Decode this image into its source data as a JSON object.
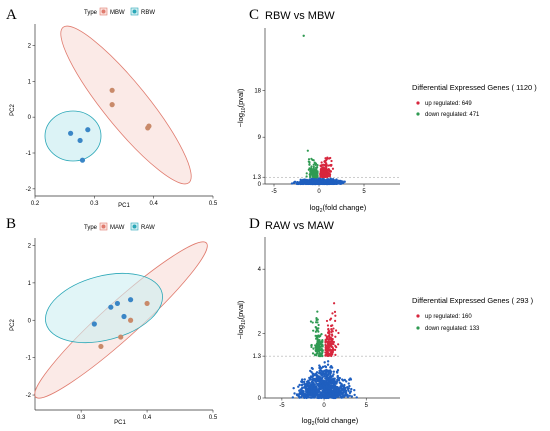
{
  "panels": {
    "A": "A",
    "B": "B",
    "C": "C",
    "D": "D"
  },
  "colors": {
    "mbw": "#e07b6e",
    "rbw": "#2aa7b7",
    "up": "#d7263d",
    "down": "#2f9a52",
    "neutral": "#1f5fbf"
  },
  "chart_data": [
    {
      "type": "scatter",
      "panel": "A",
      "legend_title": "Type",
      "legend_entries": [
        "MBW",
        "RBW"
      ],
      "xlabel": "PC1",
      "ylabel": "PC2",
      "xlim": [
        0.2,
        0.5
      ],
      "ylim": [
        -2.2,
        2.6
      ],
      "xticks": [
        0.2,
        0.3,
        0.4,
        0.5
      ],
      "xticklabels": [
        "0.2",
        "0.3",
        "0.4",
        "0.5"
      ],
      "yticks": [
        -2,
        -1,
        0,
        1,
        2
      ],
      "yticklabels": [
        "-2",
        "-1",
        "0",
        "1",
        "2"
      ],
      "series": [
        {
          "name": "MBW",
          "x": [
            0.33,
            0.33,
            0.39,
            0.392
          ],
          "y": [
            0.75,
            0.35,
            -0.3,
            -0.25
          ]
        },
        {
          "name": "RBW",
          "x": [
            0.26,
            0.276,
            0.289,
            0.28
          ],
          "y": [
            -0.45,
            -0.65,
            -0.35,
            -1.2
          ]
        }
      ]
    },
    {
      "type": "scatter",
      "panel": "B",
      "legend_title": "Type",
      "legend_entries": [
        "MAW",
        "RAW"
      ],
      "xlabel": "PC1",
      "ylabel": "PC2",
      "xlim": [
        0.23,
        0.5
      ],
      "ylim": [
        -2.4,
        2.2
      ],
      "xticks": [
        0.3,
        0.4,
        0.5
      ],
      "xticklabels": [
        "0.3",
        "0.4",
        "0.5"
      ],
      "yticks": [
        -2,
        -1,
        0,
        1,
        2
      ],
      "yticklabels": [
        "-2",
        "-1",
        "0",
        "1",
        "2"
      ],
      "series": [
        {
          "name": "MAW",
          "x": [
            0.33,
            0.36,
            0.375,
            0.4
          ],
          "y": [
            -0.7,
            -0.45,
            0.0,
            0.45
          ]
        },
        {
          "name": "RAW",
          "x": [
            0.32,
            0.345,
            0.355,
            0.365,
            0.375
          ],
          "y": [
            -0.1,
            0.35,
            0.45,
            0.1,
            0.55
          ]
        }
      ]
    },
    {
      "type": "scatter",
      "panel": "C",
      "title": "RBW vs MBW",
      "legend_title": "Differential Expressed Genes ( 1120 )",
      "legend_entries": [
        "up regulated: 649",
        "down regulated: 471"
      ],
      "xlabel": "log2(fold change)",
      "ylabel": "-log10(pval)",
      "xlim": [
        -6,
        9
      ],
      "ylim": [
        0,
        30
      ],
      "xticks": [
        -5,
        0,
        5
      ],
      "xticklabels": [
        "-5",
        "0",
        "5"
      ],
      "yticks": [
        0,
        1.3,
        9,
        18
      ],
      "yticklabels": [
        "0",
        "1.3",
        "9",
        "18"
      ],
      "threshold": 1.3,
      "n_up": 649,
      "n_down": 471
    },
    {
      "type": "scatter",
      "panel": "D",
      "title": "RAW vs MAW",
      "legend_title": "Differential Expressed Genes ( 293 )",
      "legend_entries": [
        "up regulated: 160",
        "down regulated: 133"
      ],
      "xlabel": "log2(fold change)",
      "ylabel": "-log10(pval)",
      "xlim": [
        -7,
        9
      ],
      "ylim": [
        0,
        5
      ],
      "xticks": [
        -5,
        0,
        5
      ],
      "xticklabels": [
        "-5",
        "0",
        "5"
      ],
      "yticks": [
        0,
        1.3,
        2,
        4
      ],
      "yticklabels": [
        "0",
        "1.3",
        "2",
        "4"
      ],
      "threshold": 1.3,
      "n_up": 160,
      "n_down": 133
    }
  ]
}
